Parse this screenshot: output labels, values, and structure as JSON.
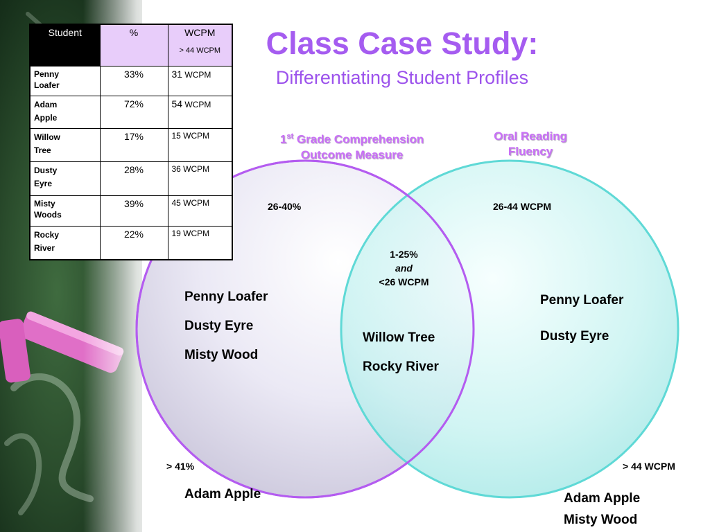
{
  "table": {
    "headers": {
      "student": "Student",
      "percent": "%",
      "wcpm": "WCPM",
      "wcpm_sub": "> 44 WCPM"
    },
    "rows": [
      {
        "first": "Penny",
        "last": "Loafer",
        "percent": "33%",
        "wcpm_num": "31",
        "wcpm_unit": "WCPM"
      },
      {
        "first": "Adam",
        "last": "Apple",
        "percent": "72%",
        "wcpm_num": "54",
        "wcpm_unit": "WCPM"
      },
      {
        "first": "Willow",
        "last": "Tree",
        "percent": "17%",
        "wcpm_num": "",
        "wcpm_unit": "15 WCPM"
      },
      {
        "first": "Dusty",
        "last": "Eyre",
        "percent": "28%",
        "wcpm_num": "",
        "wcpm_unit": "36 WCPM"
      },
      {
        "first": "Misty",
        "last": "Woods",
        "percent": "39%",
        "wcpm_num": "",
        "wcpm_unit": "45 WCPM"
      },
      {
        "first": "Rocky",
        "last": "River",
        "percent": "22%",
        "wcpm_num": "",
        "wcpm_unit": "19 WCPM"
      }
    ]
  },
  "title": "Class Case Study:",
  "subtitle": "Differentiating Student Profiles",
  "headings": {
    "left_sup_num": "1",
    "left_sup": "st",
    "left_line1_rest": " Grade Comprehension",
    "left_line2": "Outcome Measure",
    "right_line1": "Oral Reading",
    "right_line2": "Fluency"
  },
  "venn": {
    "left_range": "26-40%",
    "right_range": "26-44 WCPM",
    "overlap_line1": "1-25%",
    "overlap_line2": "and",
    "overlap_line3": "<26 WCPM",
    "left_names": [
      "Penny Loafer",
      "Dusty Eyre",
      "Misty Wood"
    ],
    "overlap_names": [
      "Willow Tree",
      "Rocky River"
    ],
    "right_names": [
      "Penny Loafer",
      "Dusty Eyre"
    ],
    "left_above": "> 41%",
    "right_above": "> 44 WCPM",
    "left_above_names": [
      "Adam Apple"
    ],
    "right_above_names": [
      "Adam Apple",
      "Misty Wood"
    ]
  },
  "colors": {
    "title": "#a55cf0",
    "left_circle_stroke": "#b45cf0",
    "right_circle_stroke": "#5fd9d6",
    "heading": "#c96ff7"
  }
}
